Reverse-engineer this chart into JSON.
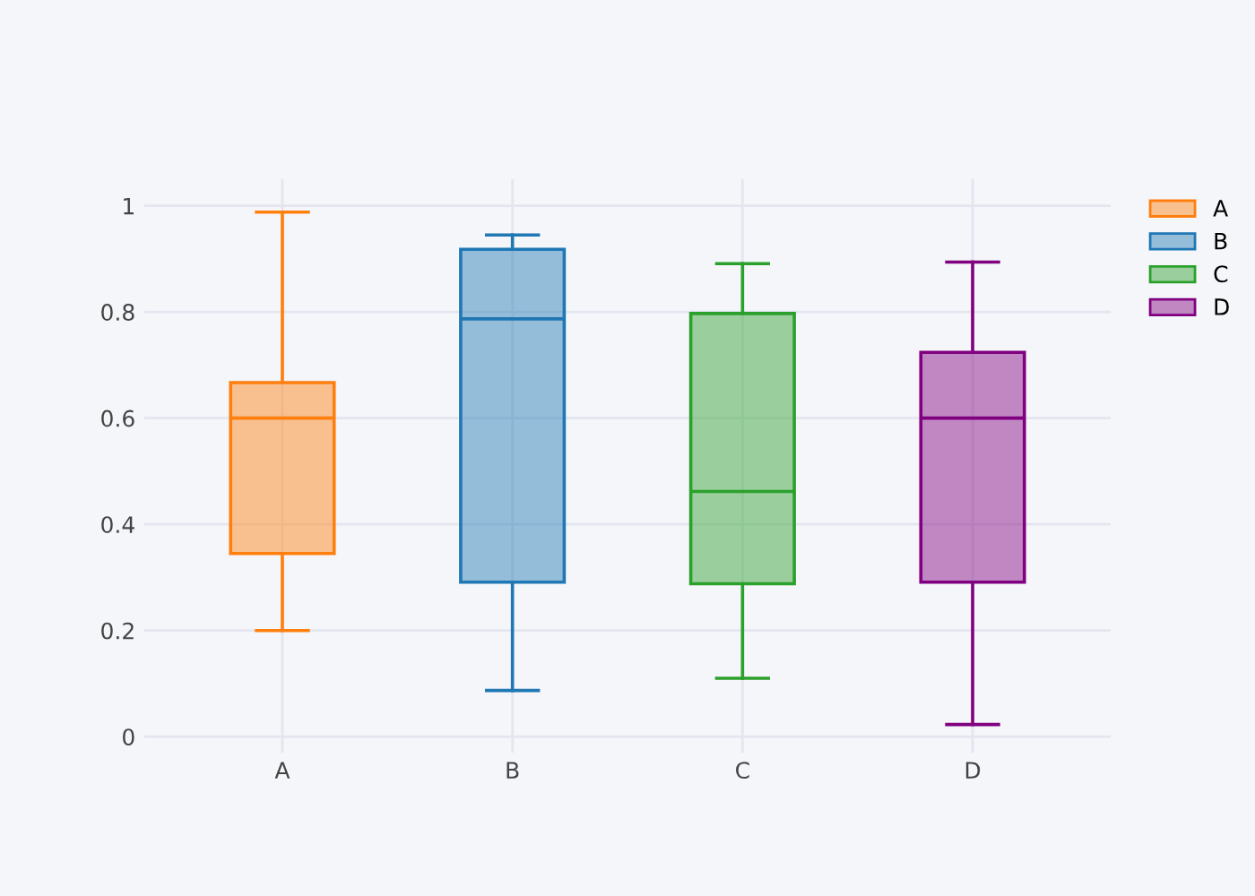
{
  "chart_data": {
    "type": "box",
    "categories": [
      "A",
      "B",
      "C",
      "D"
    ],
    "series": [
      {
        "name": "A",
        "color": "#ff7f0e",
        "x": [
          "A"
        ],
        "boxes": [
          {
            "low": 0.2,
            "q1": 0.345,
            "median": 0.6,
            "q3": 0.667,
            "high": 0.988
          }
        ]
      },
      {
        "name": "B",
        "color": "#1f77b4",
        "x": [
          "B"
        ],
        "boxes": [
          {
            "low": 0.087,
            "q1": 0.291,
            "median": 0.787,
            "q3": 0.918,
            "high": 0.945
          }
        ]
      },
      {
        "name": "C",
        "color": "#2ca02c",
        "x": [
          "C"
        ],
        "boxes": [
          {
            "low": 0.11,
            "q1": 0.288,
            "median": 0.462,
            "q3": 0.797,
            "high": 0.891
          }
        ]
      },
      {
        "name": "D",
        "color": "#800080",
        "x": [
          "D"
        ],
        "boxes": [
          {
            "low": 0.023,
            "q1": 0.291,
            "median": 0.6,
            "q3": 0.724,
            "high": 0.894
          }
        ]
      }
    ],
    "ylim": [
      -0.03,
      1.05
    ],
    "yticks": [
      0,
      0.2,
      0.4,
      0.6,
      0.8,
      1
    ],
    "grid": true,
    "legend": "top right"
  }
}
